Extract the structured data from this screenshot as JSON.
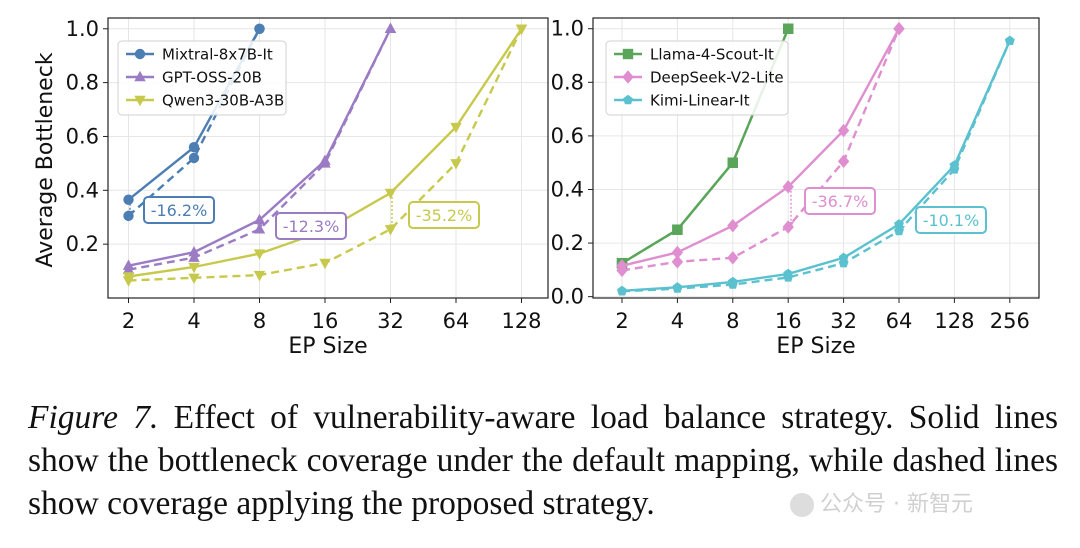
{
  "chart_data": [
    {
      "type": "line",
      "ylabel": "Average Bottleneck",
      "xlabel": "EP Size",
      "x_categories": [
        "2",
        "4",
        "8",
        "16",
        "32",
        "64",
        "128"
      ],
      "yticks": [
        "0.2",
        "0.4",
        "0.6",
        "0.8",
        "1.0"
      ],
      "ylim": [
        0.0,
        1.04
      ],
      "grid": true,
      "legend_position": "top-left",
      "series": [
        {
          "name": "Mixtral-8x7B-It",
          "color": "#4c7eb4",
          "marker": "circle",
          "solid": [
            [
              2,
              0.365
            ],
            [
              4,
              0.56
            ],
            [
              8,
              1.0
            ]
          ],
          "dashed": [
            [
              2,
              0.305
            ],
            [
              4,
              0.52
            ],
            [
              8,
              1.0
            ]
          ]
        },
        {
          "name": "GPT-OSS-20B",
          "color": "#9b7cc4",
          "marker": "triangle-up",
          "solid": [
            [
              2,
              0.12
            ],
            [
              4,
              0.17
            ],
            [
              8,
              0.29
            ],
            [
              16,
              0.51
            ],
            [
              32,
              1.0
            ]
          ],
          "dashed": [
            [
              2,
              0.105
            ],
            [
              4,
              0.15
            ],
            [
              8,
              0.255
            ],
            [
              16,
              0.5
            ],
            [
              32,
              1.0
            ]
          ]
        },
        {
          "name": "Qwen3-30B-A3B",
          "color": "#c7c94d",
          "marker": "triangle-down",
          "solid": [
            [
              2,
              0.08
            ],
            [
              4,
              0.115
            ],
            [
              8,
              0.165
            ],
            [
              16,
              0.25
            ],
            [
              32,
              0.39
            ],
            [
              64,
              0.635
            ],
            [
              128,
              1.0
            ]
          ],
          "dashed": [
            [
              2,
              0.065
            ],
            [
              4,
              0.075
            ],
            [
              8,
              0.085
            ],
            [
              16,
              0.13
            ],
            [
              32,
              0.255
            ],
            [
              64,
              0.5
            ],
            [
              128,
              1.0
            ]
          ]
        }
      ],
      "annotations": [
        {
          "text": "-16.2%",
          "series": "Mixtral-8x7B-It"
        },
        {
          "text": "-12.3%",
          "series": "GPT-OSS-20B"
        },
        {
          "text": "-35.2%",
          "series": "Qwen3-30B-A3B"
        }
      ]
    },
    {
      "type": "line",
      "ylabel": "",
      "xlabel": "EP Size",
      "x_categories": [
        "2",
        "4",
        "8",
        "16",
        "32",
        "64",
        "128",
        "256"
      ],
      "yticks": [
        "0.0",
        "0.2",
        "0.4",
        "0.6",
        "0.8",
        "1.0"
      ],
      "ylim": [
        -0.005,
        1.04
      ],
      "grid": true,
      "legend_position": "top-left",
      "series": [
        {
          "name": "Llama-4-Scout-It",
          "color": "#5aa55a",
          "marker": "square",
          "solid": [
            [
              2,
              0.125
            ],
            [
              4,
              0.25
            ],
            [
              8,
              0.5
            ],
            [
              16,
              1.0
            ]
          ],
          "dashed": [
            [
              2,
              0.125
            ],
            [
              4,
              0.25
            ],
            [
              8,
              0.5
            ],
            [
              16,
              1.0
            ]
          ]
        },
        {
          "name": "DeepSeek-V2-Lite",
          "color": "#df8ecf",
          "marker": "diamond",
          "solid": [
            [
              2,
              0.115
            ],
            [
              4,
              0.165
            ],
            [
              8,
              0.265
            ],
            [
              16,
              0.41
            ],
            [
              32,
              0.62
            ],
            [
              64,
              1.0
            ]
          ],
          "dashed": [
            [
              2,
              0.098
            ],
            [
              4,
              0.13
            ],
            [
              8,
              0.145
            ],
            [
              16,
              0.26
            ],
            [
              32,
              0.505
            ],
            [
              64,
              1.0
            ]
          ]
        },
        {
          "name": "Kimi-Linear-It",
          "color": "#5bc1cf",
          "marker": "pentagon",
          "solid": [
            [
              2,
              0.022
            ],
            [
              4,
              0.035
            ],
            [
              8,
              0.055
            ],
            [
              16,
              0.085
            ],
            [
              32,
              0.145
            ],
            [
              64,
              0.27
            ],
            [
              128,
              0.49
            ],
            [
              256,
              0.955
            ]
          ],
          "dashed": [
            [
              2,
              0.02
            ],
            [
              4,
              0.03
            ],
            [
              8,
              0.045
            ],
            [
              16,
              0.072
            ],
            [
              32,
              0.125
            ],
            [
              64,
              0.245
            ],
            [
              128,
              0.475
            ],
            [
              256,
              0.955
            ]
          ]
        }
      ],
      "annotations": [
        {
          "text": "-36.7%",
          "series": "DeepSeek-V2-Lite"
        },
        {
          "text": "-10.1%",
          "series": "Kimi-Linear-It"
        }
      ]
    }
  ],
  "caption": {
    "label": "Figure 7.",
    "text": "Effect of vulnerability-aware load balance strategy. Solid lines show the bottleneck coverage under the default mapping, while dashed lines show coverage applying the proposed strategy."
  },
  "watermark": {
    "text": "公众号 · 新智元"
  }
}
